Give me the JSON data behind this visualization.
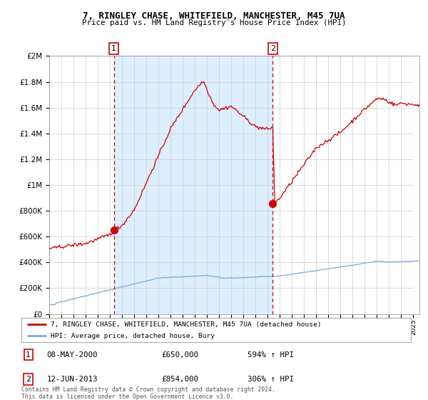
{
  "title1": "7, RINGLEY CHASE, WHITEFIELD, MANCHESTER, M45 7UA",
  "title2": "Price paid vs. HM Land Registry's House Price Index (HPI)",
  "legend_line1": "7, RINGLEY CHASE, WHITEFIELD, MANCHESTER, M45 7UA (detached house)",
  "legend_line2": "HPI: Average price, detached house, Bury",
  "annotation1": {
    "num": "1",
    "date": "08-MAY-2000",
    "price": "£650,000",
    "pct": "594% ↑ HPI"
  },
  "annotation2": {
    "num": "2",
    "date": "12-JUN-2013",
    "price": "£854,000",
    "pct": "306% ↑ HPI"
  },
  "footer": "Contains HM Land Registry data © Crown copyright and database right 2024.\nThis data is licensed under the Open Government Licence v3.0.",
  "hpi_color": "#7aaadd",
  "price_color": "#cc0000",
  "bg_color": "#ddeeff",
  "grid_color": "#cccccc",
  "point1_year": 2000.37,
  "point1_price": 650000,
  "point2_year": 2013.45,
  "point2_price": 854000,
  "vline1_year": 2000.37,
  "vline2_year": 2013.45,
  "ylim_max": 2000000,
  "xmin": 1995,
  "xmax": 2025.5
}
